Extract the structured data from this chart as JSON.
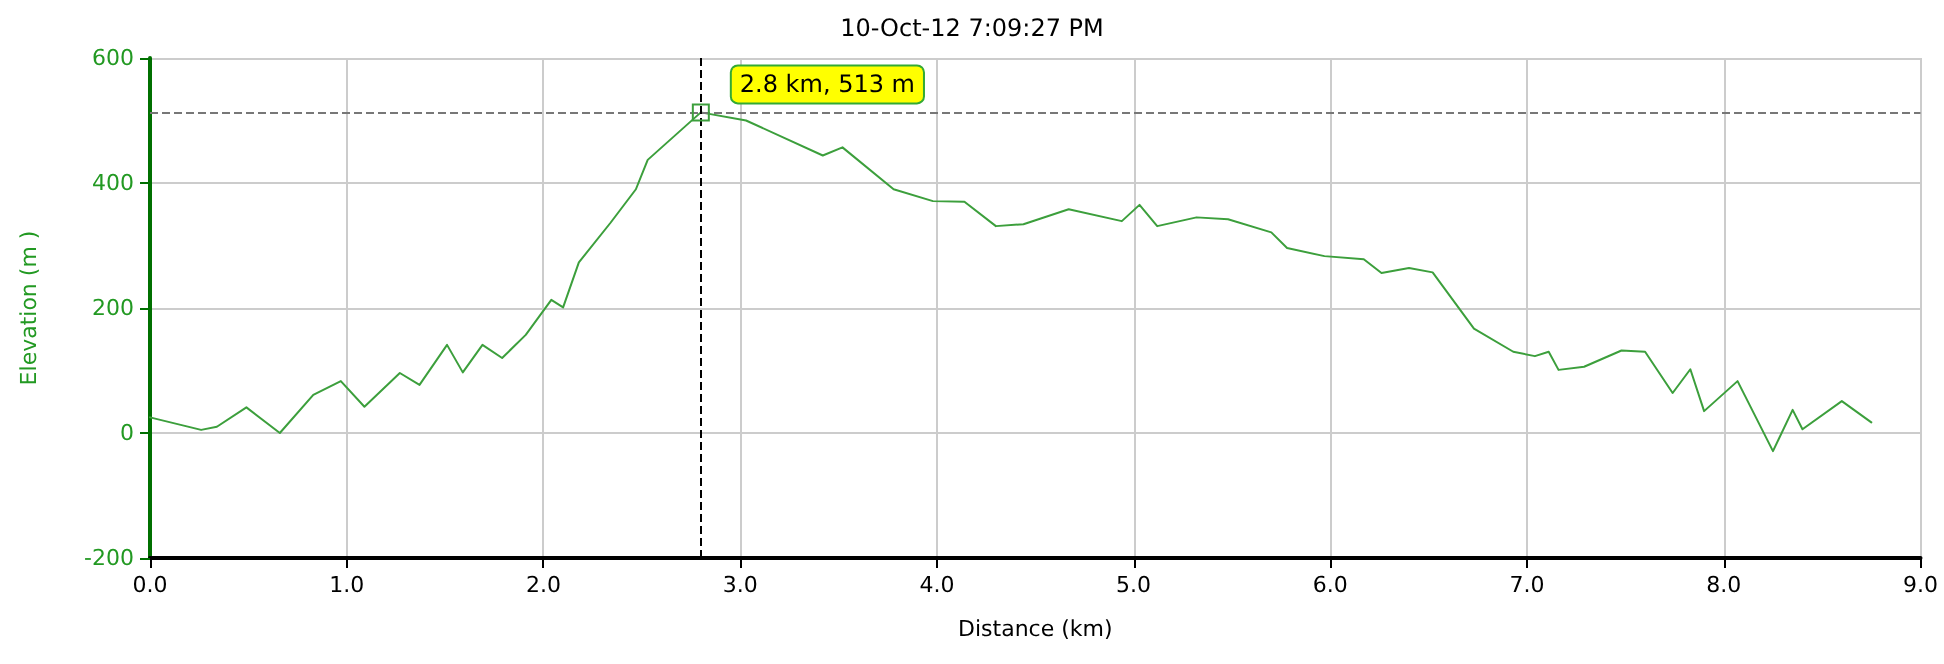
{
  "chart_data": {
    "type": "line",
    "title": "10-Oct-12 7:09:27 PM",
    "xlabel": "Distance (km)",
    "ylabel": "Elevation (m )",
    "series": [
      {
        "color": "#3c9f3c",
        "x": [
          0.0,
          0.26,
          0.34,
          0.49,
          0.66,
          0.83,
          0.97,
          1.09,
          1.27,
          1.37,
          1.51,
          1.59,
          1.69,
          1.79,
          1.91,
          2.04,
          2.1,
          2.18,
          2.34,
          2.47,
          2.53,
          2.8,
          3.03,
          3.42,
          3.52,
          3.78,
          3.98,
          4.14,
          4.3,
          4.44,
          4.67,
          4.94,
          5.03,
          5.12,
          5.32,
          5.48,
          5.7,
          5.78,
          5.97,
          6.17,
          6.26,
          6.4,
          6.52,
          6.73,
          6.93,
          7.04,
          7.11,
          7.16,
          7.29,
          7.48,
          7.6,
          7.74,
          7.83,
          7.9,
          8.07,
          8.25,
          8.35,
          8.4,
          8.6,
          8.75
        ],
        "values": [
          25,
          5,
          10,
          41,
          0,
          61,
          83,
          42,
          96,
          77,
          141,
          97,
          141,
          120,
          157,
          213,
          201,
          273,
          336,
          390,
          437,
          513,
          500,
          444,
          457,
          390,
          371,
          370,
          331,
          334,
          358,
          339,
          365,
          331,
          345,
          342,
          321,
          296,
          283,
          278,
          256,
          264,
          257,
          167,
          130,
          123,
          130,
          101,
          106,
          132,
          130,
          64,
          102,
          35,
          83,
          -29,
          37,
          6,
          51,
          17
        ]
      }
    ],
    "annotations": [
      {
        "text": "2.8 km, 513 m",
        "x": 2.8,
        "y": 513
      }
    ],
    "ref_lines": [
      {
        "axis": "y",
        "value": 513,
        "color": "#777777",
        "line_style": "dashed"
      },
      {
        "axis": "x",
        "value": 2.8,
        "color": "#000000",
        "line_style": "dashed"
      }
    ],
    "xlim": [
      0,
      9
    ],
    "xticks": [
      {
        "value": 0,
        "label": "0.0"
      },
      {
        "value": 1,
        "label": "1.0"
      },
      {
        "value": 2,
        "label": "2.0"
      },
      {
        "value": 3,
        "label": "3.0"
      },
      {
        "value": 4,
        "label": "4.0"
      },
      {
        "value": 5,
        "label": "5.0"
      },
      {
        "value": 6,
        "label": "6.0"
      },
      {
        "value": 7,
        "label": "7.0"
      },
      {
        "value": 8,
        "label": "8.0"
      },
      {
        "value": 9,
        "label": "9.0"
      }
    ],
    "ylim": [
      -200,
      600
    ],
    "yticks": [
      -200,
      0,
      200,
      400,
      600
    ],
    "grid": true,
    "marker": "none",
    "line_style": "solid"
  }
}
